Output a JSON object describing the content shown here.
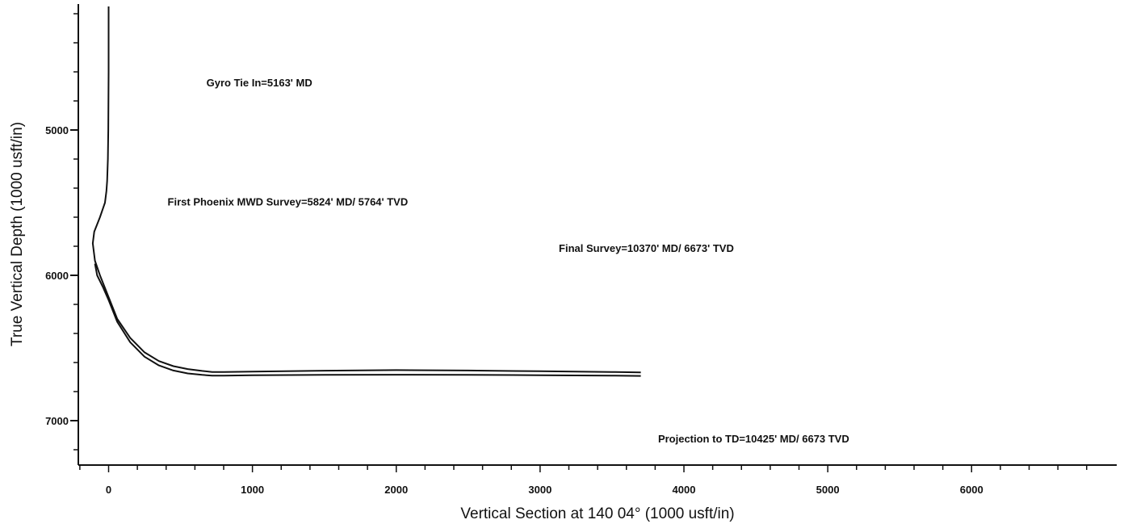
{
  "chart_data": {
    "type": "line",
    "title": "",
    "xlabel": "Vertical Section at 140 04° (1000 usft/in)",
    "ylabel": "True Vertical Depth (1000 usft/in)",
    "xlim": [
      -200,
      6950
    ],
    "ylim": [
      4150,
      7300
    ],
    "y_inverted": true,
    "grid": false,
    "x_ticks": [
      0,
      1000,
      2000,
      3000,
      4000,
      5000,
      6000
    ],
    "x_tick_labels": [
      "0",
      "1000",
      "2000",
      "3000",
      "4000",
      "5000",
      "6000"
    ],
    "y_ticks": [
      5000,
      6000,
      7000
    ],
    "y_tick_labels": [
      "5000",
      "6000",
      "7000"
    ],
    "series": [
      {
        "x": [
          0,
          0,
          -2,
          -5,
          -10,
          -15,
          -25,
          -60,
          -100,
          -110,
          -95,
          -60,
          0,
          60,
          150,
          250,
          350,
          450,
          550,
          650,
          720,
          800,
          1000,
          1500,
          2000,
          2500,
          3000,
          3500,
          3700
        ],
        "y": [
          4150,
          4600,
          5000,
          5200,
          5350,
          5420,
          5500,
          5600,
          5700,
          5780,
          5900,
          6000,
          6150,
          6300,
          6430,
          6530,
          6590,
          6625,
          6645,
          6658,
          6665,
          6665,
          6662,
          6656,
          6652,
          6655,
          6660,
          6665,
          6668
        ]
      },
      {
        "x": [
          -95,
          -80,
          -40,
          0,
          60,
          150,
          250,
          350,
          450,
          550,
          650,
          720,
          800,
          1000,
          1500,
          2000,
          2500,
          3000,
          3500,
          3700
        ],
        "y": [
          5920,
          6000,
          6080,
          6170,
          6320,
          6460,
          6560,
          6620,
          6655,
          6675,
          6685,
          6690,
          6690,
          6688,
          6685,
          6684,
          6685,
          6687,
          6690,
          6692
        ]
      }
    ],
    "annotations": [
      {
        "text": "Gyro Tie In=5163' MD",
        "x": 680,
        "y": 4700
      },
      {
        "text": "First Phoenix MWD Survey=5824' MD/ 5764' TVD",
        "x": 410,
        "y": 5520
      },
      {
        "text": "Final Survey=10370' MD/ 6673' TVD",
        "x": 3130,
        "y": 5840
      },
      {
        "text": "Projection to TD=10425' MD/ 6673  TVD",
        "x": 3820,
        "y": 7150
      }
    ]
  }
}
